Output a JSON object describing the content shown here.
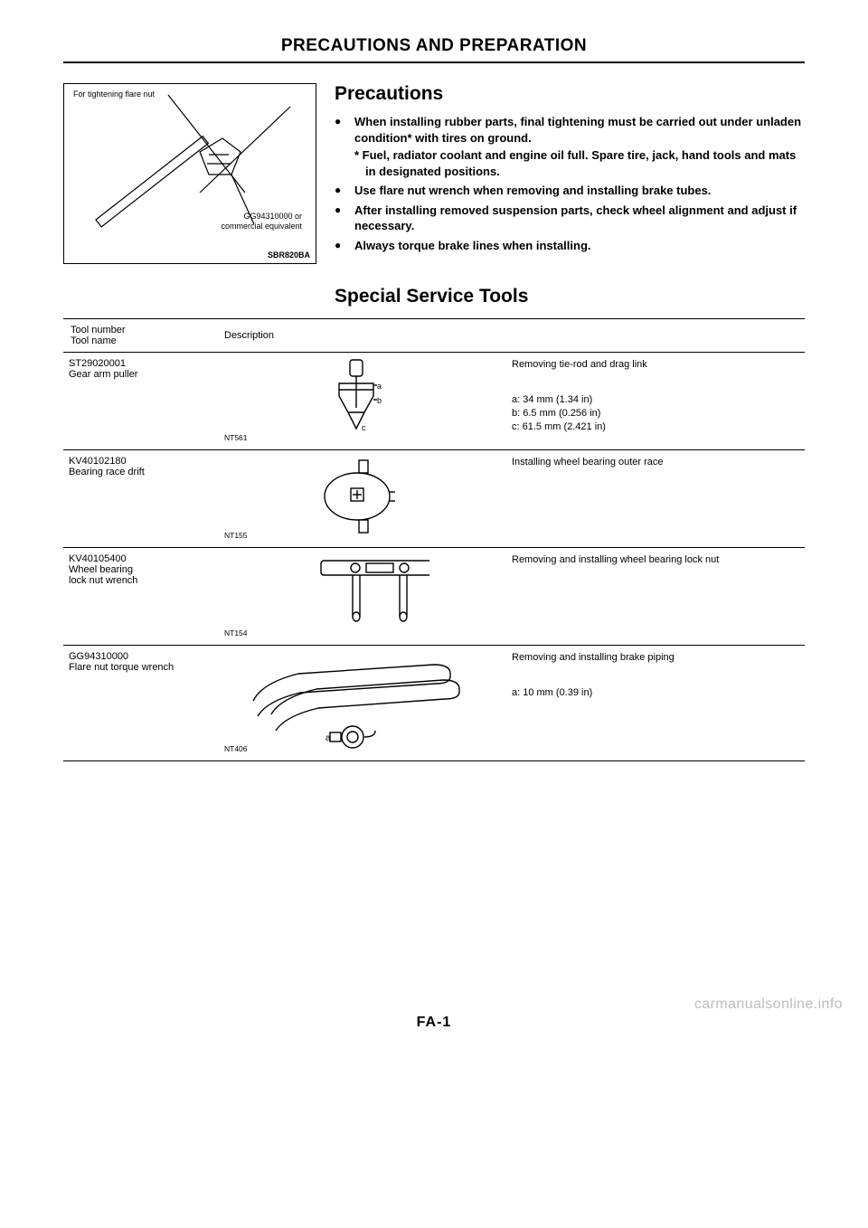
{
  "section_header": "PRECAUTIONS AND PREPARATION",
  "figure": {
    "top_label": "For tightening flare nut",
    "tool_label_line1": "GG94310000 or",
    "tool_label_line2": "commercial equivalent",
    "code": "SBR820BA"
  },
  "precautions": {
    "heading": "Precautions",
    "bullets": [
      "When installing rubber parts, final tightening must be carried out under unladen condition* with tires on ground.",
      "Use flare nut wrench when removing and installing brake tubes.",
      "After installing removed suspension parts, check wheel alignment and adjust if necessary.",
      "Always torque brake lines when installing."
    ],
    "sub_note": "* Fuel, radiator coolant and engine oil full. Spare tire, jack, hand tools and mats in designated positions."
  },
  "tools_heading": "Special Service Tools",
  "table": {
    "headers": {
      "col1_line1": "Tool number",
      "col1_line2": "Tool name",
      "col2": "Description"
    },
    "rows": [
      {
        "tool_number": "ST29020001",
        "tool_name": "Gear arm puller",
        "nt": "NT561",
        "desc_main": "Removing tie-rod and drag link",
        "dims": [
          "a: 34 mm (1.34 in)",
          "b: 6.5 mm (0.256 in)",
          "c: 61.5 mm (2.421 in)"
        ],
        "svg": "puller",
        "tall": false
      },
      {
        "tool_number": "KV40102180",
        "tool_name": "Bearing race drift",
        "nt": "NT155",
        "desc_main": "Installing wheel bearing outer race",
        "dims": [],
        "svg": "drift",
        "tall": false
      },
      {
        "tool_number": "KV40105400",
        "tool_name_line1": "Wheel bearing",
        "tool_name_line2": "lock nut wrench",
        "nt": "NT154",
        "desc_main": "Removing and installing wheel bearing lock nut",
        "dims": [],
        "svg": "locknut",
        "tall": false
      },
      {
        "tool_number": "GG94310000",
        "tool_name": "Flare nut torque wrench",
        "nt": "NT406",
        "desc_main": "Removing and installing brake piping",
        "dims": [
          "a: 10 mm (0.39 in)"
        ],
        "svg": "flarewrench",
        "tall": true
      }
    ]
  },
  "page_number": "FA-1",
  "watermark": "carmanualsonline.info",
  "colors": {
    "text": "#000000",
    "bg": "#ffffff",
    "watermark": "#bdbdbd"
  }
}
